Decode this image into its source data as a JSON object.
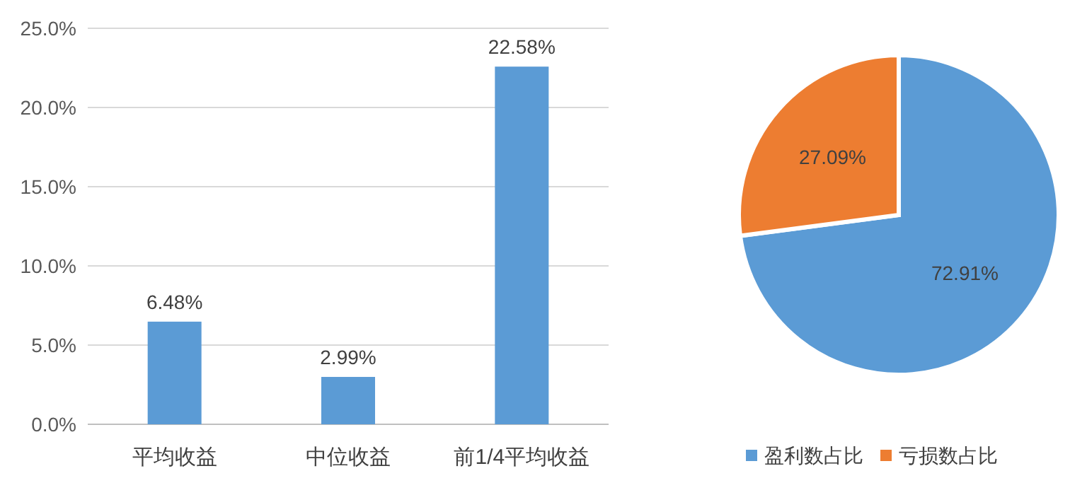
{
  "chart_data": [
    {
      "type": "bar",
      "categories": [
        "平均收益",
        "中位收益",
        "前1/4平均收益"
      ],
      "values": [
        6.48,
        2.99,
        22.58
      ],
      "color": "#5b9bd5",
      "value_labels": [
        "6.48%",
        "2.99%",
        "22.58%"
      ],
      "ylim": [
        0,
        25
      ],
      "yticks": [
        {
          "value": 0,
          "label": "0.0%"
        },
        {
          "value": 5,
          "label": "5.0%"
        },
        {
          "value": 10,
          "label": "10.0%"
        },
        {
          "value": 15,
          "label": "15.0%"
        },
        {
          "value": 20,
          "label": "20.0%"
        },
        {
          "value": 25,
          "label": "25.0%"
        }
      ],
      "grid": "y"
    },
    {
      "type": "pie",
      "categories": [
        "盈利数占比",
        "亏损数占比"
      ],
      "values": [
        72.91,
        27.09
      ],
      "colors": [
        "#5b9bd5",
        "#ed7d31"
      ],
      "value_labels": [
        "72.91%",
        "27.09%"
      ],
      "legend": "bottom"
    }
  ]
}
